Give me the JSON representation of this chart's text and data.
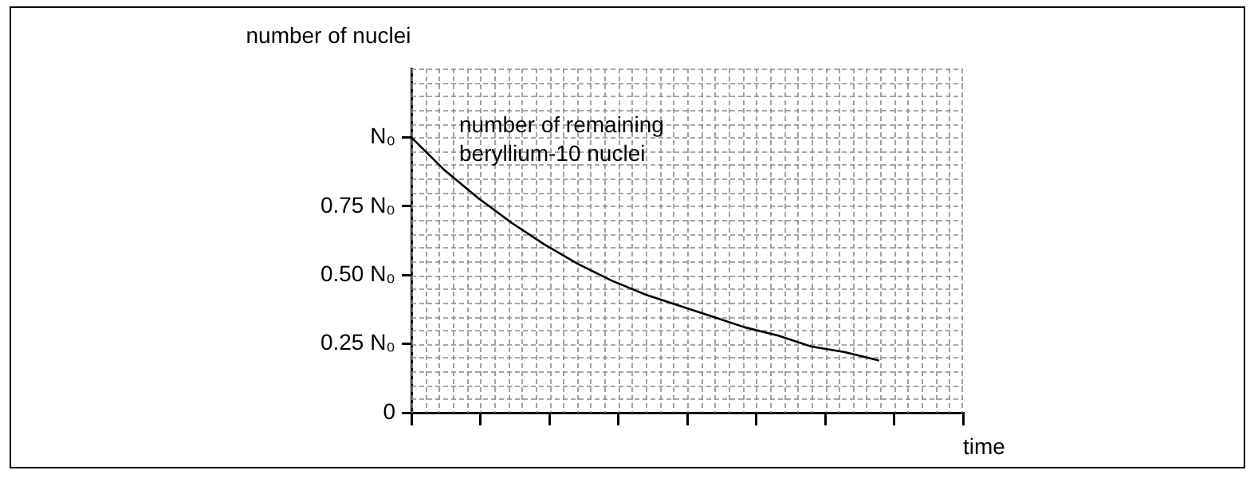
{
  "chart_data": {
    "type": "line",
    "ylabel": "number of nuclei",
    "xlabel": "time",
    "categories": [
      null,
      null,
      null,
      null,
      null,
      null,
      null,
      null,
      null,
      null,
      null,
      null,
      null,
      null,
      null
    ],
    "series": [
      {
        "name": "number of remaining beryllium-10 nuclei",
        "color": "#000000",
        "values": [
          1,
          0.88,
          0.78,
          0.69,
          0.61,
          0.54,
          0.48,
          0.43,
          0.39,
          0.35,
          0.31,
          0.28,
          0.24,
          0.22,
          0.19
        ]
      }
    ],
    "ylim": [
      0,
      1.25
    ],
    "yticks": [
      {
        "value": 0,
        "label": "0"
      },
      {
        "value": 0.25,
        "label": "0.25 N₀"
      },
      {
        "value": 0.5,
        "label": "0.50 N₀"
      },
      {
        "value": 0.75,
        "label": "0.75 N₀"
      },
      {
        "value": 1,
        "label": "N₀"
      }
    ],
    "tick_labels": "y",
    "grid": true,
    "legend": "top left",
    "marker": "none",
    "line_style": "solid"
  }
}
